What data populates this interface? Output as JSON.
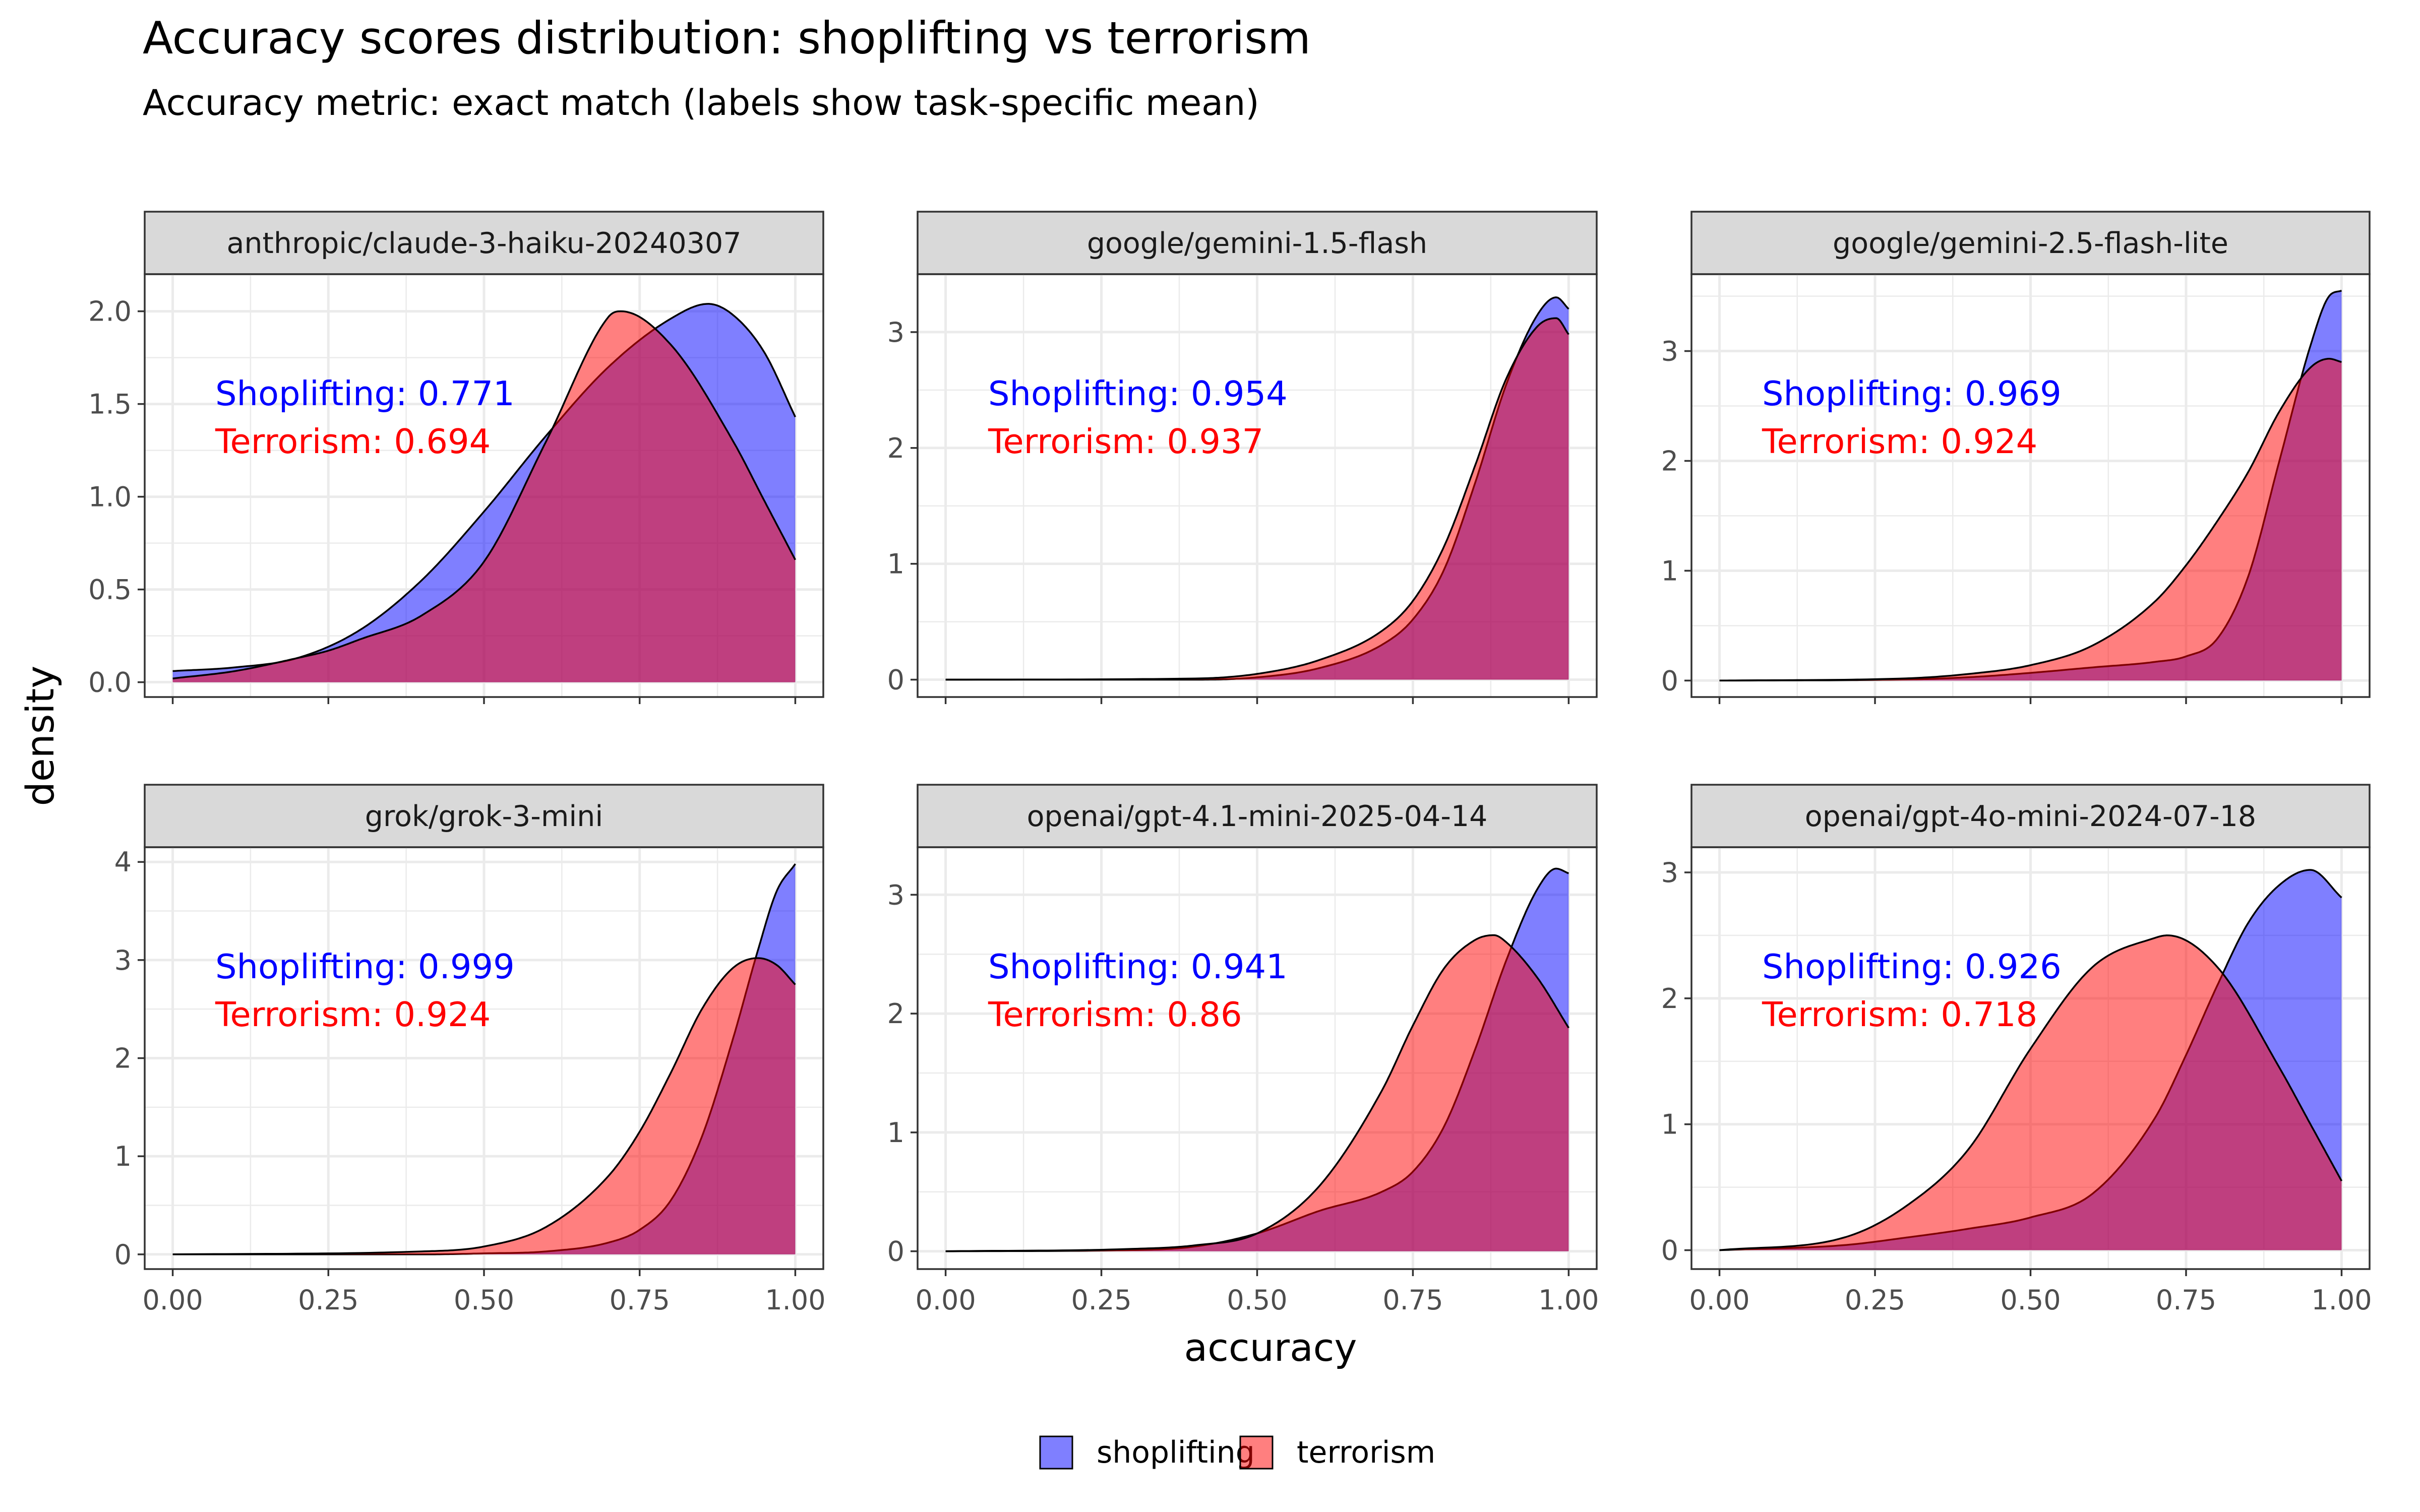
{
  "chart_data": {
    "type": "area",
    "title": "Accuracy scores distribution: shoplifting vs terrorism",
    "subtitle": "Accuracy metric: exact match (labels show task-specific mean)",
    "xlabel": "accuracy",
    "ylabel": "density",
    "xlim": [
      0,
      1
    ],
    "x_ticks": [
      "0.00",
      "0.25",
      "0.50",
      "0.75",
      "1.00"
    ],
    "grid": true,
    "legend_position": "bottom",
    "series": [
      {
        "name": "shoplifting",
        "fill": "#0000ff",
        "fill_opacity": 0.5
      },
      {
        "name": "terrorism",
        "fill": "#ff0000",
        "fill_opacity": 0.5
      }
    ],
    "annotation_colors": {
      "shoplifting": "#0000ff",
      "terrorism": "#ff0000"
    },
    "panels": [
      {
        "facet": "anthropic/claude-3-haiku-20240307",
        "ylim": [
          -0.08,
          2.2
        ],
        "y_ticks": [
          "0.0",
          "0.5",
          "1.0",
          "1.5",
          "2.0"
        ],
        "y_tick_values": [
          0,
          0.5,
          1.0,
          1.5,
          2.0
        ],
        "annotations": [
          "Shoplifting: 0.771",
          "Terrorism: 0.694"
        ],
        "curves": {
          "shoplifting": {
            "x": [
              0,
              0.1,
              0.2,
              0.3,
              0.4,
              0.5,
              0.6,
              0.7,
              0.8,
              0.86,
              0.9,
              0.95,
              1.0
            ],
            "y": [
              0.06,
              0.08,
              0.13,
              0.28,
              0.55,
              0.92,
              1.33,
              1.7,
              1.96,
              2.04,
              1.98,
              1.78,
              1.43
            ]
          },
          "terrorism": {
            "x": [
              0,
              0.1,
              0.2,
              0.25,
              0.3,
              0.4,
              0.5,
              0.6,
              0.7,
              0.72,
              0.8,
              0.9,
              0.95,
              1.0
            ],
            "y": [
              0.02,
              0.06,
              0.13,
              0.17,
              0.23,
              0.36,
              0.65,
              1.3,
              1.97,
              2.0,
              1.82,
              1.3,
              0.98,
              0.66
            ]
          }
        }
      },
      {
        "facet": "google/gemini-1.5-flash",
        "ylim": [
          -0.15,
          3.5
        ],
        "y_ticks": [
          "0",
          "1",
          "2",
          "3"
        ],
        "y_tick_values": [
          0,
          1,
          2,
          3
        ],
        "annotations": [
          "Shoplifting: 0.954",
          "Terrorism: 0.937"
        ],
        "curves": {
          "shoplifting": {
            "x": [
              0,
              0.4,
              0.5,
              0.6,
              0.7,
              0.75,
              0.8,
              0.85,
              0.9,
              0.95,
              0.98,
              1.0
            ],
            "y": [
              0,
              0.0,
              0.02,
              0.1,
              0.3,
              0.52,
              0.95,
              1.7,
              2.55,
              3.15,
              3.3,
              3.2
            ]
          },
          "terrorism": {
            "x": [
              0,
              0.4,
              0.5,
              0.6,
              0.7,
              0.75,
              0.8,
              0.85,
              0.9,
              0.95,
              0.98,
              1.0
            ],
            "y": [
              0,
              0.01,
              0.05,
              0.17,
              0.42,
              0.68,
              1.15,
              1.85,
              2.6,
              3.05,
              3.12,
              2.98
            ]
          }
        }
      },
      {
        "facet": "google/gemini-2.5-flash-lite",
        "ylim": [
          -0.15,
          3.7
        ],
        "y_ticks": [
          "0",
          "1",
          "2",
          "3"
        ],
        "y_tick_values": [
          0,
          1,
          2,
          3
        ],
        "annotations": [
          "Shoplifting: 0.969",
          "Terrorism: 0.924"
        ],
        "curves": {
          "shoplifting": {
            "x": [
              0,
              0.3,
              0.4,
              0.5,
              0.6,
              0.7,
              0.75,
              0.8,
              0.85,
              0.9,
              0.95,
              0.98,
              1.0
            ],
            "y": [
              0,
              0.01,
              0.03,
              0.07,
              0.12,
              0.17,
              0.22,
              0.38,
              0.95,
              2.0,
              3.05,
              3.5,
              3.55
            ]
          },
          "terrorism": {
            "x": [
              0,
              0.3,
              0.4,
              0.5,
              0.6,
              0.7,
              0.75,
              0.8,
              0.85,
              0.9,
              0.95,
              0.98,
              1.0
            ],
            "y": [
              0,
              0.02,
              0.06,
              0.14,
              0.32,
              0.72,
              1.05,
              1.45,
              1.9,
              2.45,
              2.85,
              2.93,
              2.9
            ]
          }
        }
      },
      {
        "facet": "grok/grok-3-mini",
        "ylim": [
          -0.15,
          4.15
        ],
        "y_ticks": [
          "0",
          "1",
          "2",
          "3",
          "4"
        ],
        "y_tick_values": [
          0,
          1,
          2,
          3,
          4
        ],
        "annotations": [
          "Shoplifting: 0.999",
          "Terrorism: 0.924"
        ],
        "curves": {
          "shoplifting": {
            "x": [
              0,
              0.4,
              0.5,
              0.6,
              0.7,
              0.75,
              0.8,
              0.85,
              0.9,
              0.94,
              0.97,
              1.0
            ],
            "y": [
              0,
              0,
              0.01,
              0.03,
              0.12,
              0.25,
              0.55,
              1.2,
              2.2,
              3.1,
              3.7,
              3.98
            ]
          },
          "terrorism": {
            "x": [
              0,
              0.4,
              0.5,
              0.6,
              0.7,
              0.75,
              0.8,
              0.85,
              0.9,
              0.94,
              0.97,
              1.0
            ],
            "y": [
              0,
              0.03,
              0.08,
              0.28,
              0.8,
              1.25,
              1.85,
              2.5,
              2.92,
              3.02,
              2.95,
              2.75
            ]
          }
        }
      },
      {
        "facet": "openai/gpt-4.1-mini-2025-04-14",
        "ylim": [
          -0.15,
          3.4
        ],
        "y_ticks": [
          "0",
          "1",
          "2",
          "3"
        ],
        "y_tick_values": [
          0,
          1,
          2,
          3
        ],
        "annotations": [
          "Shoplifting: 0.941",
          "Terrorism: 0.86"
        ],
        "curves": {
          "shoplifting": {
            "x": [
              0,
              0.3,
              0.4,
              0.5,
              0.6,
              0.7,
              0.75,
              0.8,
              0.85,
              0.9,
              0.95,
              0.98,
              1.0
            ],
            "y": [
              0,
              0.01,
              0.04,
              0.15,
              0.34,
              0.5,
              0.67,
              1.05,
              1.7,
              2.45,
              3.05,
              3.22,
              3.18
            ]
          },
          "terrorism": {
            "x": [
              0,
              0.3,
              0.4,
              0.5,
              0.6,
              0.7,
              0.75,
              0.8,
              0.85,
              0.88,
              0.9,
              0.95,
              1.0
            ],
            "y": [
              0,
              0.02,
              0.05,
              0.15,
              0.55,
              1.35,
              1.9,
              2.38,
              2.62,
              2.66,
              2.6,
              2.3,
              1.88
            ]
          }
        }
      },
      {
        "facet": "openai/gpt-4o-mini-2024-07-18",
        "ylim": [
          -0.15,
          3.2
        ],
        "y_ticks": [
          "0",
          "1",
          "2",
          "3"
        ],
        "y_tick_values": [
          0,
          1,
          2,
          3
        ],
        "annotations": [
          "Shoplifting: 0.926",
          "Terrorism: 0.718"
        ],
        "curves": {
          "shoplifting": {
            "x": [
              0,
              0.2,
              0.3,
              0.4,
              0.5,
              0.6,
              0.7,
              0.75,
              0.8,
              0.85,
              0.9,
              0.95,
              1.0
            ],
            "y": [
              0,
              0.04,
              0.1,
              0.17,
              0.26,
              0.45,
              1.05,
              1.55,
              2.1,
              2.6,
              2.9,
              3.02,
              2.8
            ]
          },
          "terrorism": {
            "x": [
              0,
              0.2,
              0.3,
              0.4,
              0.5,
              0.6,
              0.7,
              0.72,
              0.8,
              0.9,
              0.95,
              1.0
            ],
            "y": [
              0,
              0.1,
              0.35,
              0.8,
              1.6,
              2.25,
              2.48,
              2.5,
              2.25,
              1.45,
              1.0,
              0.55
            ]
          }
        }
      }
    ]
  }
}
